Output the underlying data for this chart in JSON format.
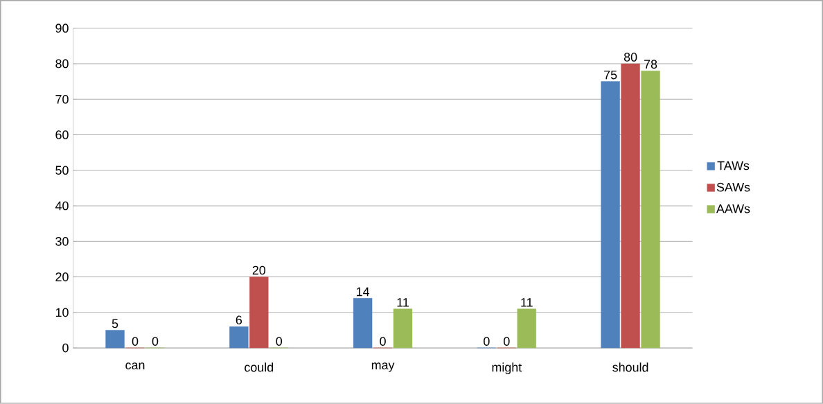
{
  "chart_data": {
    "type": "bar",
    "categories": [
      "can",
      "could",
      "may",
      "might",
      "should"
    ],
    "series": [
      {
        "name": "TAWs",
        "color": "#4f81bd",
        "values": [
          5,
          6,
          14,
          0,
          75
        ]
      },
      {
        "name": "SAWs",
        "color": "#c0504d",
        "values": [
          0,
          20,
          0,
          0,
          80
        ]
      },
      {
        "name": "AAWs",
        "color": "#9bbb59",
        "values": [
          0,
          0,
          11,
          11,
          78
        ]
      }
    ],
    "ylim": [
      0,
      90
    ],
    "yticks": [
      0,
      10,
      20,
      30,
      40,
      50,
      60,
      70,
      80,
      90
    ],
    "grid": "y",
    "legend": "right",
    "data_labels": true
  }
}
